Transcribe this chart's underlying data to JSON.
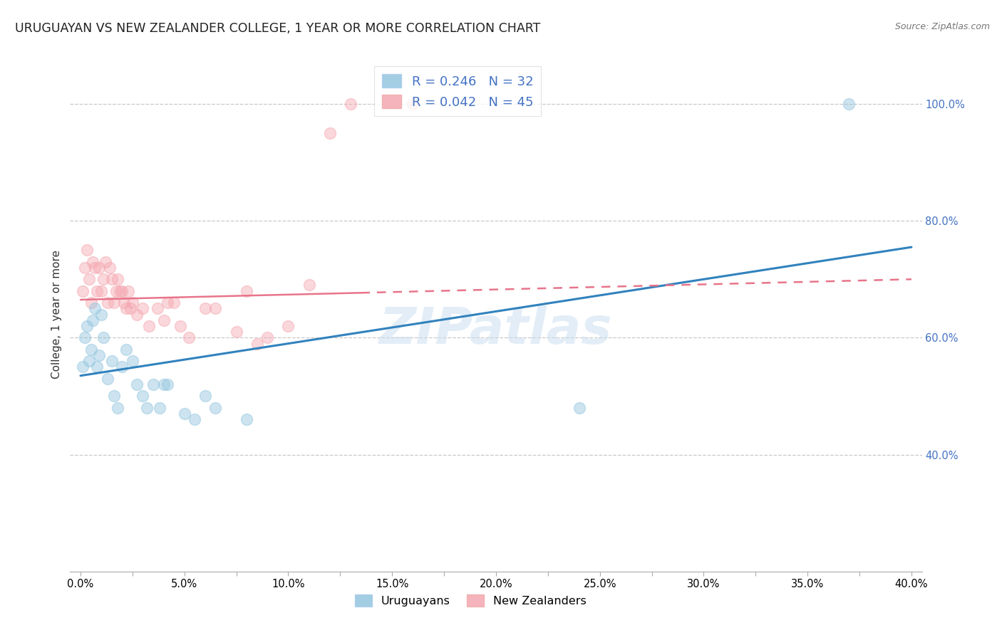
{
  "title": "URUGUAYAN VS NEW ZEALANDER COLLEGE, 1 YEAR OR MORE CORRELATION CHART",
  "source": "Source: ZipAtlas.com",
  "ylabel_label": "College, 1 year or more",
  "x_tick_labels": [
    "0.0%",
    "",
    "5.0%",
    "",
    "10.0%",
    "",
    "15.0%",
    "",
    "20.0%",
    "",
    "25.0%",
    "",
    "30.0%",
    "",
    "35.0%",
    "",
    "40.0%"
  ],
  "x_tick_vals": [
    0.0,
    0.025,
    0.05,
    0.075,
    0.1,
    0.125,
    0.15,
    0.175,
    0.2,
    0.225,
    0.25,
    0.275,
    0.3,
    0.325,
    0.35,
    0.375,
    0.4
  ],
  "y_tick_labels": [
    "40.0%",
    "60.0%",
    "80.0%",
    "100.0%"
  ],
  "y_tick_vals": [
    0.4,
    0.6,
    0.8,
    1.0
  ],
  "xlim": [
    -0.005,
    0.405
  ],
  "ylim": [
    0.2,
    1.08
  ],
  "blue_color": "#92c5de",
  "pink_color": "#f4a7b0",
  "blue_line_color": "#3182bd",
  "pink_line_color": "#e8748a",
  "legend_blue_r": "R = 0.246",
  "legend_blue_n": "N = 32",
  "legend_pink_r": "R = 0.042",
  "legend_pink_n": "N = 45",
  "legend_uruguayans": "Uruguayans",
  "legend_nz": "New Zealanders",
  "watermark": "ZIPatlas",
  "uruguayan_x": [
    0.001,
    0.002,
    0.003,
    0.004,
    0.005,
    0.006,
    0.007,
    0.008,
    0.009,
    0.01,
    0.011,
    0.013,
    0.015,
    0.016,
    0.018,
    0.02,
    0.022,
    0.025,
    0.027,
    0.03,
    0.032,
    0.035,
    0.038,
    0.04,
    0.042,
    0.05,
    0.055,
    0.06,
    0.065,
    0.08,
    0.24,
    0.37
  ],
  "uruguayan_y": [
    0.55,
    0.6,
    0.62,
    0.56,
    0.58,
    0.63,
    0.65,
    0.55,
    0.57,
    0.64,
    0.6,
    0.53,
    0.56,
    0.5,
    0.48,
    0.55,
    0.58,
    0.56,
    0.52,
    0.5,
    0.48,
    0.52,
    0.48,
    0.52,
    0.52,
    0.47,
    0.46,
    0.5,
    0.48,
    0.46,
    0.48,
    1.0
  ],
  "nz_x": [
    0.001,
    0.002,
    0.003,
    0.004,
    0.005,
    0.006,
    0.007,
    0.008,
    0.009,
    0.01,
    0.011,
    0.012,
    0.013,
    0.014,
    0.015,
    0.016,
    0.017,
    0.018,
    0.019,
    0.02,
    0.021,
    0.022,
    0.023,
    0.024,
    0.025,
    0.027,
    0.03,
    0.033,
    0.037,
    0.04,
    0.042,
    0.045,
    0.048,
    0.052,
    0.06,
    0.065,
    0.075,
    0.08,
    0.085,
    0.09,
    0.1,
    0.11,
    0.12,
    0.13,
    0.16
  ],
  "nz_y": [
    0.68,
    0.72,
    0.75,
    0.7,
    0.66,
    0.73,
    0.72,
    0.68,
    0.72,
    0.68,
    0.7,
    0.73,
    0.66,
    0.72,
    0.7,
    0.66,
    0.68,
    0.7,
    0.68,
    0.68,
    0.66,
    0.65,
    0.68,
    0.65,
    0.66,
    0.64,
    0.65,
    0.62,
    0.65,
    0.63,
    0.66,
    0.66,
    0.62,
    0.6,
    0.65,
    0.65,
    0.61,
    0.68,
    0.59,
    0.6,
    0.62,
    0.69,
    0.95,
    1.0,
    1.0
  ],
  "blue_regression_x0": 0.0,
  "blue_regression_y0": 0.535,
  "blue_regression_x1": 0.4,
  "blue_regression_y1": 0.755,
  "pink_regression_x0": 0.0,
  "pink_regression_y0": 0.665,
  "pink_regression_x1": 0.4,
  "pink_regression_y1": 0.7,
  "background_color": "#ffffff",
  "grid_color": "#c8c8c8",
  "right_axis_color": "#4472c4",
  "title_fontsize": 12.5,
  "label_fontsize": 11,
  "tick_fontsize": 10.5,
  "marker_size": 130,
  "marker_alpha": 0.45
}
